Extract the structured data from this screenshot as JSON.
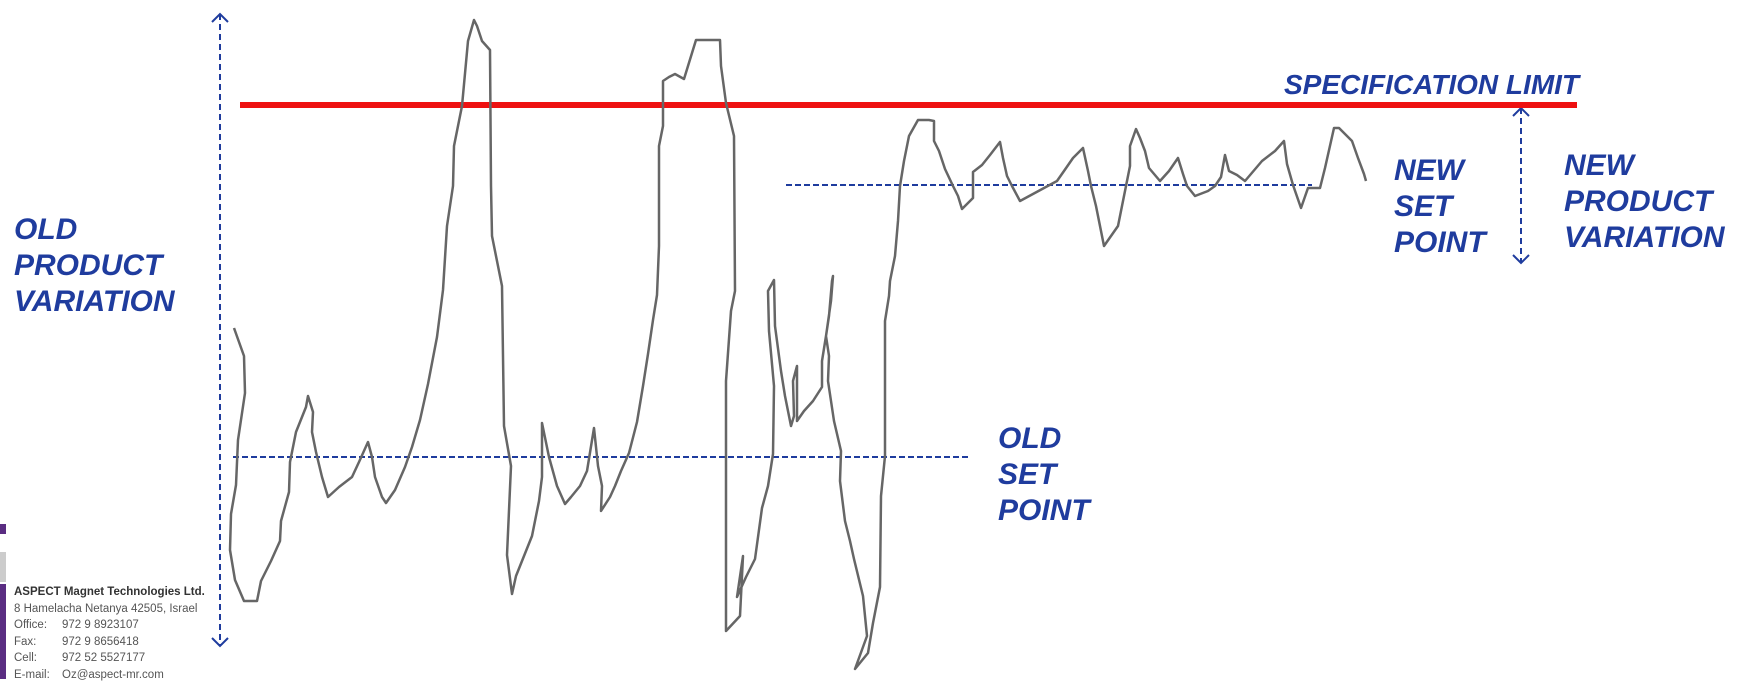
{
  "labels": {
    "old_product_variation": [
      "OLD",
      "PRODUCT",
      "VARIATION"
    ],
    "old_set_point": [
      "OLD",
      "SET",
      "POINT"
    ],
    "new_set_point": [
      "NEW",
      "SET",
      "POINT"
    ],
    "new_product_variation": [
      "NEW",
      "PRODUCT",
      "VARIATION"
    ],
    "specification_limit": "SPECIFICATION  LIMIT"
  },
  "footer": {
    "company": "ASPECT Magnet Technologies Ltd.",
    "address": "8 Hamelacha Netanya 42505, Israel",
    "office_label": "Office:",
    "office": "972  9  8923107",
    "fax_label": "Fax:",
    "fax": "972  9  8656418",
    "cell_label": "Cell:",
    "cell": "972  52  5527177",
    "email_label": "E-mail:",
    "email": "Oz@aspect-mr.com"
  },
  "colors": {
    "label": "#1F3C9E",
    "spec_line": "#EE1111",
    "process_line": "#666666",
    "setpoint_line": "#1F3C9E",
    "accent_purple": "#5A2D82",
    "accent_gray": "#CCCCCC"
  }
}
